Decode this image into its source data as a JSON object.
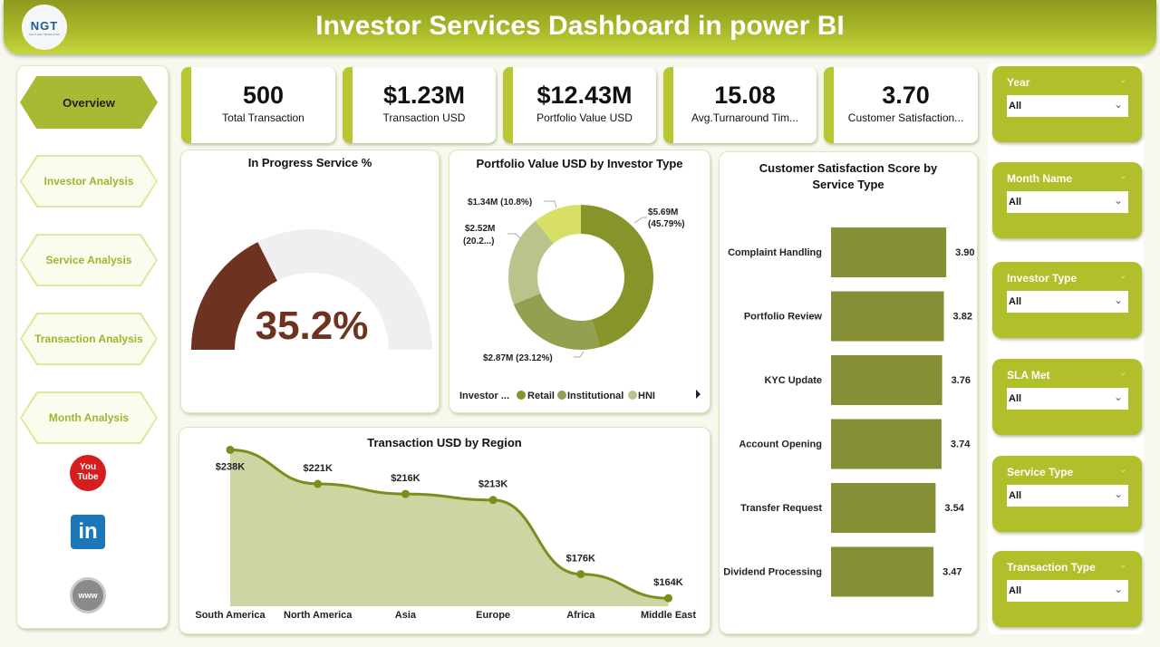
{
  "header": {
    "title": "Investor Services Dashboard in power BI",
    "logo_text": "NGT",
    "logo_sub": "NEXT GEN TEMPLATES"
  },
  "nav": {
    "items": [
      {
        "label": "Overview",
        "active": true
      },
      {
        "label": "Investor Analysis"
      },
      {
        "label": "Service Analysis"
      },
      {
        "label": "Transaction Analysis"
      },
      {
        "label": "Month Analysis"
      }
    ],
    "social": [
      {
        "icon": "youtube-icon",
        "text": "You Tube"
      },
      {
        "icon": "linkedin-icon",
        "text": "in"
      },
      {
        "icon": "globe-www-icon",
        "text": "www"
      }
    ]
  },
  "kpis": [
    {
      "value": "500",
      "label": "Total Transaction"
    },
    {
      "value": "$1.23M",
      "label": "Transaction USD"
    },
    {
      "value": "$12.43M",
      "label": "Portfolio Value USD"
    },
    {
      "value": "15.08",
      "label": "Avg.Turnaround Tim..."
    },
    {
      "value": "3.70",
      "label": "Customer Satisfaction..."
    }
  ],
  "filters": [
    {
      "label": "Year",
      "value": "All"
    },
    {
      "label": "Month Name",
      "value": "All"
    },
    {
      "label": "Investor Type",
      "value": "All"
    },
    {
      "label": "SLA Met",
      "value": "All"
    },
    {
      "label": "Service Type",
      "value": "All"
    },
    {
      "label": "Transaction Type",
      "value": "All"
    }
  ],
  "colors": {
    "accent": "#b1bf2a",
    "gauge_value": "#6e3320",
    "gauge_track": "#f0eeee",
    "bar": "#868f35",
    "line": "#7e8c1e",
    "area": "#cdd5a2"
  },
  "chart_data": [
    {
      "type": "gauge",
      "title": "In Progress Service %",
      "value": 35.2,
      "label": "35.2%",
      "min": 0,
      "max": 100
    },
    {
      "type": "pie",
      "title": "Portfolio Value USD by Investor Type",
      "legend_title": "Investor ...",
      "legend_placement": "bottom",
      "slices": [
        {
          "name": "Retail",
          "value": 5.69,
          "label": "$5.69M",
          "pct_label": "(45.79%)",
          "color": "#87942a"
        },
        {
          "name": "Institutional",
          "value": 2.87,
          "label": "$2.87M (23.12%)",
          "color": "#959f50"
        },
        {
          "name": "HNI",
          "value": 2.52,
          "label": "$2.52M",
          "pct_label": "(20.2...)",
          "color": "#b8c48a"
        },
        {
          "value": 1.34,
          "label": "$1.34M (10.8%)",
          "color": "#d7e064"
        }
      ]
    },
    {
      "type": "bar",
      "orientation": "horizontal",
      "title": "Customer Satisfaction Score by Service Type",
      "xlim": [
        0,
        4
      ],
      "categories": [
        "Complaint Handling",
        "Portfolio Review",
        "KYC Update",
        "Account Opening",
        "Transfer Request",
        "Dividend Processing"
      ],
      "values": [
        3.9,
        3.82,
        3.76,
        3.74,
        3.54,
        3.47
      ],
      "labels": [
        "3.90",
        "3.82",
        "3.76",
        "3.74",
        "3.54",
        "3.47"
      ]
    },
    {
      "type": "area",
      "title": "Transaction USD by Region",
      "ylim": [
        160,
        240
      ],
      "categories": [
        "South America",
        "North America",
        "Asia",
        "Europe",
        "Africa",
        "Middle East"
      ],
      "values": [
        238,
        221,
        216,
        213,
        176,
        164
      ],
      "labels": [
        "$238K",
        "$221K",
        "$216K",
        "$213K",
        "$176K",
        "$164K"
      ]
    }
  ]
}
